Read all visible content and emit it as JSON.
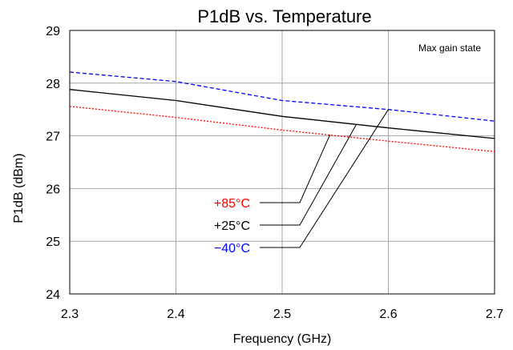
{
  "chart_data": {
    "type": "line",
    "title": "P1dB vs. Temperature",
    "xlabel": "Frequency (GHz)",
    "ylabel": "P1dB (dBm)",
    "xlim": [
      2.3,
      2.7
    ],
    "ylim": [
      24,
      29
    ],
    "x_ticks": [
      "2.3",
      "2.4",
      "2.5",
      "2.6",
      "2.7"
    ],
    "y_ticks": [
      "24",
      "25",
      "26",
      "27",
      "28",
      "29"
    ],
    "grid": true,
    "annotation": "Max gain state",
    "series": [
      {
        "name": "+85°C",
        "color": "#ff0000",
        "style": "dotted",
        "x": [
          2.3,
          2.4,
          2.5,
          2.6,
          2.7
        ],
        "y": [
          27.56,
          27.35,
          27.11,
          26.9,
          26.7
        ],
        "label_anchor": {
          "x": 2.545,
          "y": 27.02
        }
      },
      {
        "name": "+25°C",
        "color": "#000000",
        "style": "solid",
        "x": [
          2.3,
          2.4,
          2.5,
          2.6,
          2.7
        ],
        "y": [
          27.88,
          27.67,
          27.37,
          27.15,
          26.95
        ],
        "label_anchor": {
          "x": 2.57,
          "y": 27.22
        }
      },
      {
        "name": "−40°C",
        "color": "#0000ff",
        "style": "dashed",
        "x": [
          2.3,
          2.4,
          2.5,
          2.6,
          2.7
        ],
        "y": [
          28.21,
          28.03,
          27.67,
          27.5,
          27.28
        ],
        "label_anchor": {
          "x": 2.6,
          "y": 27.5
        }
      }
    ]
  }
}
